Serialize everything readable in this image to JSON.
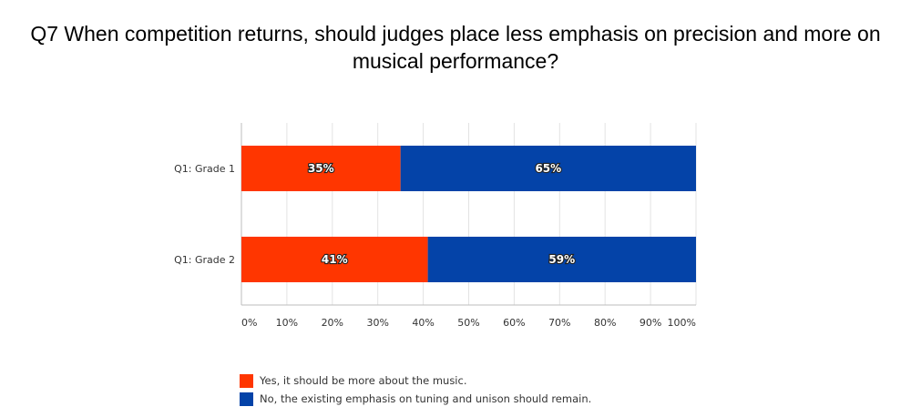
{
  "chart_data": {
    "type": "bar",
    "orientation": "horizontal",
    "stacked": true,
    "title": "Q7 When competition returns, should judges place less emphasis on precision and more on musical performance?",
    "categories": [
      "Q1: Grade 1",
      "Q1: Grade 2"
    ],
    "series": [
      {
        "name": "Yes, it should be more about the music.",
        "values": [
          35,
          41
        ],
        "labels": [
          "35%",
          "41%"
        ],
        "color": "#ff3600"
      },
      {
        "name": "No, the existing emphasis on tuning and unison should remain.",
        "values": [
          65,
          59
        ],
        "labels": [
          "65%",
          "59%"
        ],
        "color": "#0443a8"
      }
    ],
    "x_ticks": [
      "0%",
      "10%",
      "20%",
      "30%",
      "40%",
      "50%",
      "60%",
      "70%",
      "80%",
      "90%",
      "100%"
    ],
    "xlim": [
      0,
      100
    ],
    "grid": true,
    "legend_position": "bottom-left"
  }
}
